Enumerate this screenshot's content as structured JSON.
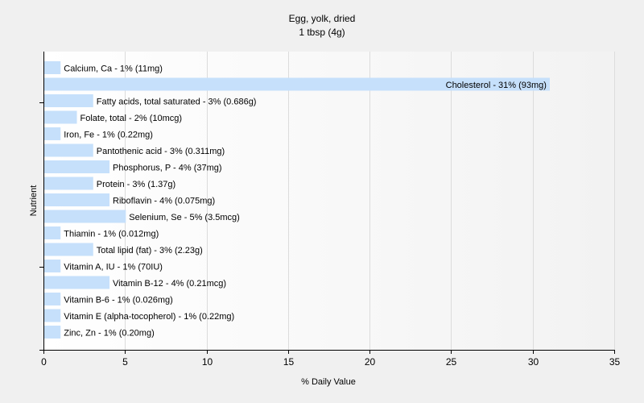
{
  "chart_data": {
    "type": "bar",
    "orientation": "horizontal",
    "title": "Egg, yolk, dried",
    "subtitle": "1 tbsp (4g)",
    "xlabel": "% Daily Value",
    "ylabel": "Nutrient",
    "xlim": [
      0,
      35
    ],
    "xticks": [
      0,
      5,
      10,
      15,
      20,
      25,
      30,
      35
    ],
    "grid": true,
    "bar_color": "#c6e0fb",
    "bars": [
      {
        "label": "Calcium, Ca - 1% (11mg)",
        "value": 1
      },
      {
        "label": "Cholesterol - 31% (93mg)",
        "value": 31
      },
      {
        "label": "Fatty acids, total saturated - 3% (0.686g)",
        "value": 3
      },
      {
        "label": "Folate, total - 2% (10mcg)",
        "value": 2
      },
      {
        "label": "Iron, Fe - 1% (0.22mg)",
        "value": 1
      },
      {
        "label": "Pantothenic acid - 3% (0.311mg)",
        "value": 3
      },
      {
        "label": "Phosphorus, P - 4% (37mg)",
        "value": 4
      },
      {
        "label": "Protein - 3% (1.37g)",
        "value": 3
      },
      {
        "label": "Riboflavin - 4% (0.075mg)",
        "value": 4
      },
      {
        "label": "Selenium, Se - 5% (3.5mcg)",
        "value": 5
      },
      {
        "label": "Thiamin - 1% (0.012mg)",
        "value": 1
      },
      {
        "label": "Total lipid (fat) - 3% (2.23g)",
        "value": 3
      },
      {
        "label": "Vitamin A, IU - 1% (70IU)",
        "value": 1
      },
      {
        "label": "Vitamin B-12 - 4% (0.21mcg)",
        "value": 4
      },
      {
        "label": "Vitamin B-6 - 1% (0.026mg)",
        "value": 1
      },
      {
        "label": "Vitamin E (alpha-tocopherol) - 1% (0.22mg)",
        "value": 1
      },
      {
        "label": "Zinc, Zn - 1% (0.20mg)",
        "value": 1
      }
    ]
  }
}
